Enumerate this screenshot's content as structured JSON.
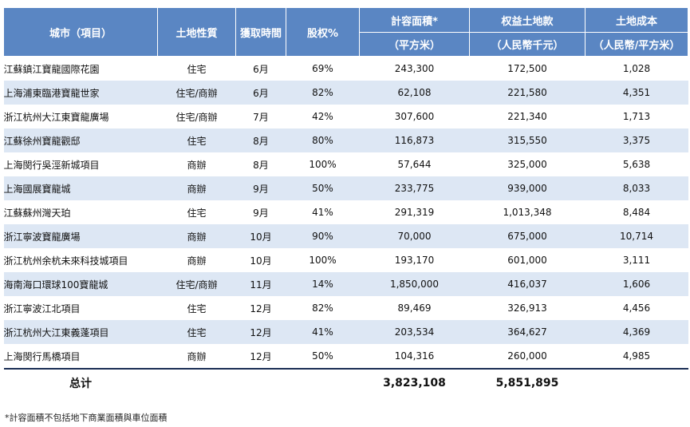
{
  "header": {
    "city": "城市（項目）",
    "land_type": "土地性質",
    "acquired": "獲取時間",
    "equity": "股权%",
    "gfa": "計容面積*",
    "gfa_unit": "（平方米）",
    "land_price": "权益土地款",
    "land_price_unit": "（人民幣千元）",
    "land_cost": "土地成本",
    "land_cost_unit": "（人民幣/平方米）"
  },
  "rows": [
    {
      "city": "江蘇鎮江寶龍國際花園",
      "type": "住宅",
      "time": "6月",
      "equity": "69%",
      "gfa": "243,300",
      "price": "172,500",
      "cost": "1,028"
    },
    {
      "city": "上海浦東臨港寶龍世家",
      "type": "住宅/商辦",
      "time": "6月",
      "equity": "82%",
      "gfa": "62,108",
      "price": "221,580",
      "cost": "4,351"
    },
    {
      "city": "浙江杭州大江東寶龍廣場",
      "type": "住宅/商辦",
      "time": "7月",
      "equity": "42%",
      "gfa": "307,600",
      "price": "221,340",
      "cost": "1,713"
    },
    {
      "city": "江蘇徐州寶龍觀邸",
      "type": "住宅",
      "time": "8月",
      "equity": "80%",
      "gfa": "116,873",
      "price": "315,550",
      "cost": "3,375"
    },
    {
      "city": "上海閔行吳涇新城項目",
      "type": "商辦",
      "time": "8月",
      "equity": "100%",
      "gfa": "57,644",
      "price": "325,000",
      "cost": "5,638"
    },
    {
      "city": "上海國展寶龍城",
      "type": "商辦",
      "time": "9月",
      "equity": "50%",
      "gfa": "233,775",
      "price": "939,000",
      "cost": "8,033"
    },
    {
      "city": "江蘇蘇州灣天珀",
      "type": "住宅",
      "time": "9月",
      "equity": "41%",
      "gfa": "291,319",
      "price": "1,013,348",
      "cost": "8,484"
    },
    {
      "city": "浙江寧波寶龍廣場",
      "type": "商辦",
      "time": "10月",
      "equity": "90%",
      "gfa": "70,000",
      "price": "675,000",
      "cost": "10,714"
    },
    {
      "city": "浙江杭州余杭未來科技城項目",
      "type": "商辦",
      "time": "10月",
      "equity": "100%",
      "gfa": "193,170",
      "price": "601,000",
      "cost": "3,111"
    },
    {
      "city": "海南海口環球100寶龍城",
      "type": "住宅/商辦",
      "time": "11月",
      "equity": "14%",
      "gfa": "1,850,000",
      "price": "416,037",
      "cost": "1,606"
    },
    {
      "city": "浙江寧波江北項目",
      "type": "住宅",
      "time": "12月",
      "equity": "82%",
      "gfa": "89,469",
      "price": "326,913",
      "cost": "4,456"
    },
    {
      "city": "浙江杭州大江東義蓬項目",
      "type": "住宅",
      "time": "12月",
      "equity": "41%",
      "gfa": "203,534",
      "price": "364,627",
      "cost": "4,369"
    },
    {
      "city": "上海閔行馬橋項目",
      "type": "商辦",
      "time": "12月",
      "equity": "50%",
      "gfa": "104,316",
      "price": "260,000",
      "cost": "4,985"
    }
  ],
  "total": {
    "label": "总计",
    "gfa": "3,823,108",
    "price": "5,851,895"
  },
  "footnote": "*計容面積不包括地下商業面積與車位面積",
  "colors": {
    "header_bg": "#5a86c3",
    "row_alt": "#dde7f4",
    "total_rule": "#1b2e55"
  }
}
